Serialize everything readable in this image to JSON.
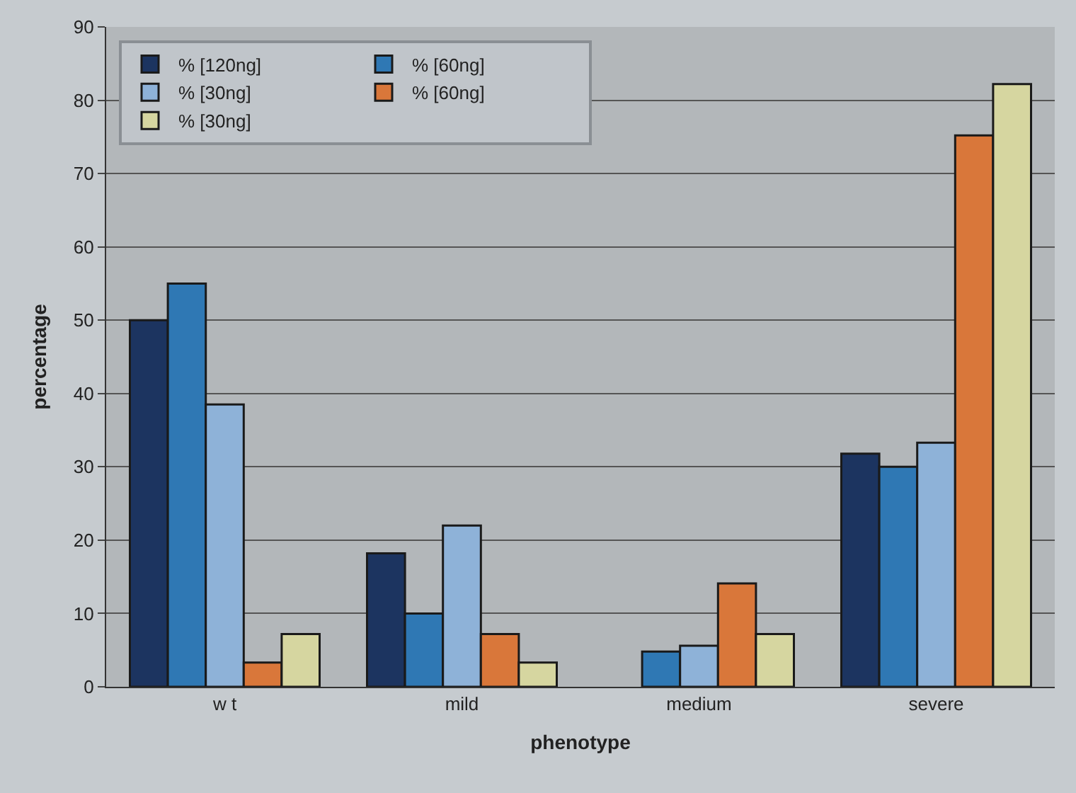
{
  "chart_data": {
    "type": "bar",
    "xlabel": "phenotype",
    "ylabel": "percentage",
    "categories": [
      "w t",
      "mild",
      "medium",
      "severe"
    ],
    "series": [
      {
        "name": "% [120ng]",
        "color": "#1c3460",
        "values": [
          50,
          18.2,
          null,
          31.8
        ]
      },
      {
        "name": "% [60ng]",
        "color": "#2f78b4",
        "values": [
          55,
          10,
          4.8,
          30
        ]
      },
      {
        "name": "% [30ng]",
        "color": "#8eb2d8",
        "values": [
          38.5,
          22,
          5.6,
          33.3
        ]
      },
      {
        "name": "% [60ng]",
        "color": "#d9773a",
        "values": [
          3.3,
          7.2,
          14.1,
          75.2
        ]
      },
      {
        "name": "% [30ng]",
        "color": "#d6d6a0",
        "values": [
          7.2,
          3.3,
          7.2,
          82.2
        ]
      }
    ],
    "ylim": [
      0,
      90
    ],
    "yticks": [
      0,
      10,
      20,
      30,
      40,
      50,
      60,
      70,
      80,
      90
    ],
    "grid": "y",
    "legend": "top left"
  }
}
